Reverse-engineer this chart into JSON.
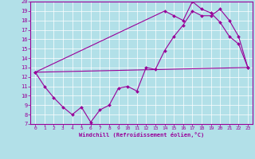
{
  "title": "",
  "xlabel": "Windchill (Refroidissement éolien,°C)",
  "ylabel": "",
  "bg_color": "#b2e0e8",
  "line_color": "#990099",
  "grid_color": "#ffffff",
  "xlim": [
    -0.5,
    23.5
  ],
  "ylim": [
    7,
    20
  ],
  "xticks": [
    0,
    1,
    2,
    3,
    4,
    5,
    6,
    7,
    8,
    9,
    10,
    11,
    12,
    13,
    14,
    15,
    16,
    17,
    18,
    19,
    20,
    21,
    22,
    23
  ],
  "yticks": [
    7,
    8,
    9,
    10,
    11,
    12,
    13,
    14,
    15,
    16,
    17,
    18,
    19,
    20
  ],
  "series1_x": [
    0,
    1,
    2,
    3,
    4,
    5,
    6,
    7,
    8,
    9,
    10,
    11,
    12,
    13,
    14,
    15,
    16,
    17,
    18,
    19,
    20,
    21,
    22,
    23
  ],
  "series1_y": [
    12.5,
    11.0,
    9.8,
    8.8,
    8.0,
    8.8,
    7.2,
    8.5,
    9.0,
    10.8,
    11.0,
    10.5,
    13.0,
    12.8,
    14.8,
    16.3,
    17.5,
    19.0,
    18.5,
    18.5,
    19.2,
    18.0,
    16.3,
    13.0
  ],
  "series2_x": [
    0,
    23
  ],
  "series2_y": [
    12.5,
    13.0
  ],
  "series3_x": [
    0,
    14,
    15,
    16,
    17,
    18,
    19,
    20,
    21,
    22,
    23
  ],
  "series3_y": [
    12.5,
    19.0,
    18.5,
    18.0,
    20.0,
    19.2,
    18.8,
    17.8,
    16.3,
    15.5,
    13.0
  ]
}
